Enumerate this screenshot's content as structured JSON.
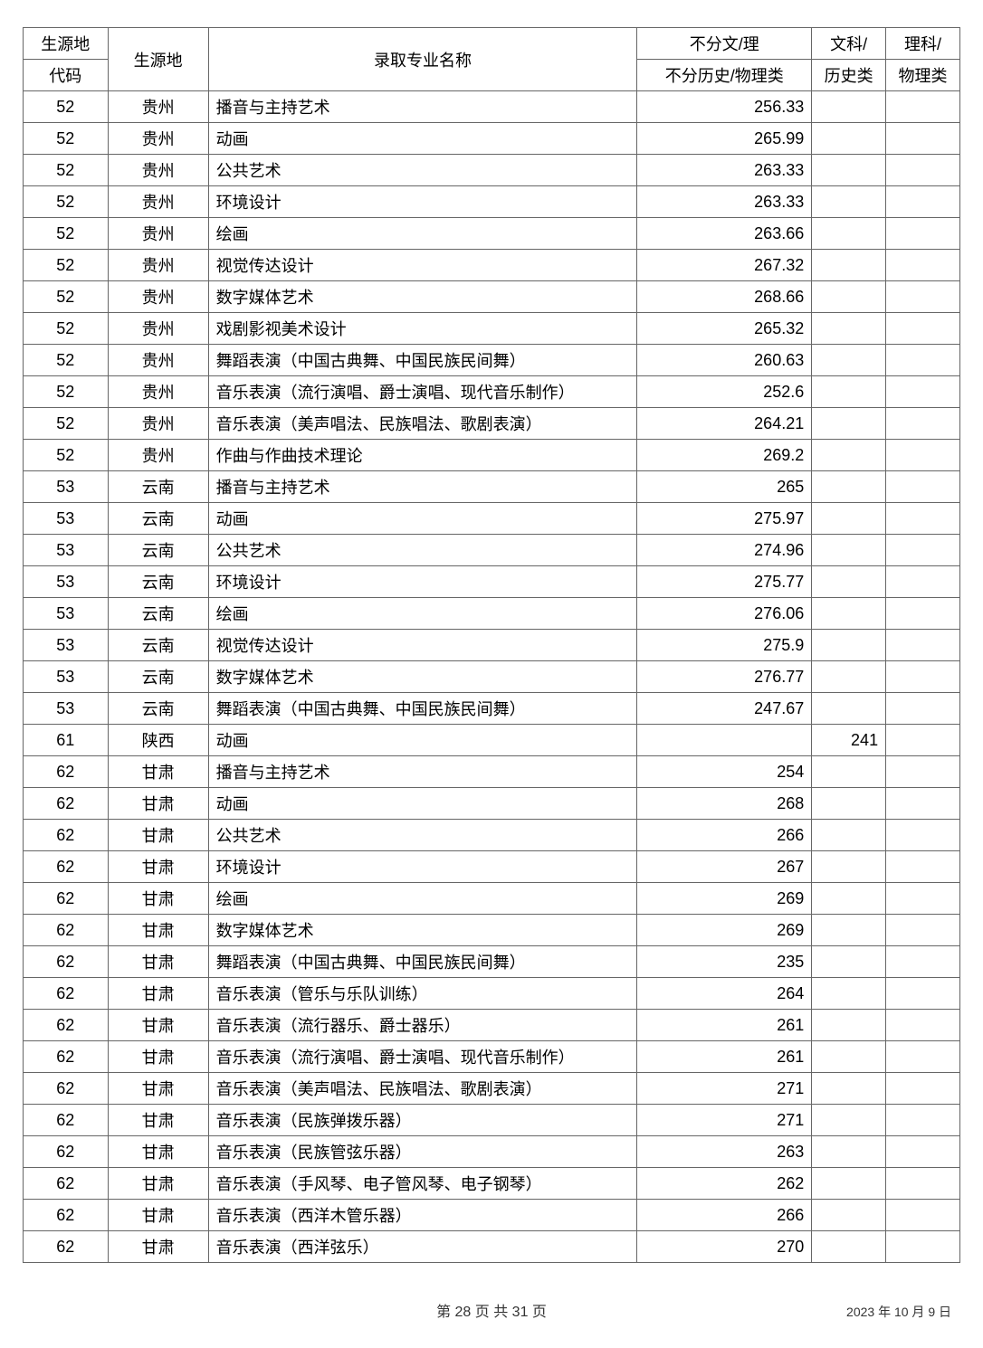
{
  "table": {
    "headers": {
      "col1_line1": "生源地",
      "col1_line2": "代码",
      "col2": "生源地",
      "col3": "录取专业名称",
      "col4_line1": "不分文/理",
      "col4_line2": "不分历史/物理类",
      "col5_line1": "文科/",
      "col5_line2": "历史类",
      "col6_line1": "理科/",
      "col6_line2": "物理类"
    },
    "rows": [
      {
        "code": "52",
        "region": "贵州",
        "major": "播音与主持艺术",
        "s1": "256.33",
        "s2": "",
        "s3": ""
      },
      {
        "code": "52",
        "region": "贵州",
        "major": "动画",
        "s1": "265.99",
        "s2": "",
        "s3": ""
      },
      {
        "code": "52",
        "region": "贵州",
        "major": "公共艺术",
        "s1": "263.33",
        "s2": "",
        "s3": ""
      },
      {
        "code": "52",
        "region": "贵州",
        "major": "环境设计",
        "s1": "263.33",
        "s2": "",
        "s3": ""
      },
      {
        "code": "52",
        "region": "贵州",
        "major": "绘画",
        "s1": "263.66",
        "s2": "",
        "s3": ""
      },
      {
        "code": "52",
        "region": "贵州",
        "major": "视觉传达设计",
        "s1": "267.32",
        "s2": "",
        "s3": ""
      },
      {
        "code": "52",
        "region": "贵州",
        "major": "数字媒体艺术",
        "s1": "268.66",
        "s2": "",
        "s3": ""
      },
      {
        "code": "52",
        "region": "贵州",
        "major": "戏剧影视美术设计",
        "s1": "265.32",
        "s2": "",
        "s3": ""
      },
      {
        "code": "52",
        "region": "贵州",
        "major": "舞蹈表演（中国古典舞、中国民族民间舞）",
        "s1": "260.63",
        "s2": "",
        "s3": ""
      },
      {
        "code": "52",
        "region": "贵州",
        "major": "音乐表演（流行演唱、爵士演唱、现代音乐制作）",
        "s1": "252.6",
        "s2": "",
        "s3": ""
      },
      {
        "code": "52",
        "region": "贵州",
        "major": "音乐表演（美声唱法、民族唱法、歌剧表演）",
        "s1": "264.21",
        "s2": "",
        "s3": ""
      },
      {
        "code": "52",
        "region": "贵州",
        "major": "作曲与作曲技术理论",
        "s1": "269.2",
        "s2": "",
        "s3": ""
      },
      {
        "code": "53",
        "region": "云南",
        "major": "播音与主持艺术",
        "s1": "265",
        "s2": "",
        "s3": ""
      },
      {
        "code": "53",
        "region": "云南",
        "major": "动画",
        "s1": "275.97",
        "s2": "",
        "s3": ""
      },
      {
        "code": "53",
        "region": "云南",
        "major": "公共艺术",
        "s1": "274.96",
        "s2": "",
        "s3": ""
      },
      {
        "code": "53",
        "region": "云南",
        "major": "环境设计",
        "s1": "275.77",
        "s2": "",
        "s3": ""
      },
      {
        "code": "53",
        "region": "云南",
        "major": "绘画",
        "s1": "276.06",
        "s2": "",
        "s3": ""
      },
      {
        "code": "53",
        "region": "云南",
        "major": "视觉传达设计",
        "s1": "275.9",
        "s2": "",
        "s3": ""
      },
      {
        "code": "53",
        "region": "云南",
        "major": "数字媒体艺术",
        "s1": "276.77",
        "s2": "",
        "s3": ""
      },
      {
        "code": "53",
        "region": "云南",
        "major": "舞蹈表演（中国古典舞、中国民族民间舞）",
        "s1": "247.67",
        "s2": "",
        "s3": ""
      },
      {
        "code": "61",
        "region": "陕西",
        "major": "动画",
        "s1": "",
        "s2": "241",
        "s3": ""
      },
      {
        "code": "62",
        "region": "甘肃",
        "major": "播音与主持艺术",
        "s1": "254",
        "s2": "",
        "s3": ""
      },
      {
        "code": "62",
        "region": "甘肃",
        "major": "动画",
        "s1": "268",
        "s2": "",
        "s3": ""
      },
      {
        "code": "62",
        "region": "甘肃",
        "major": "公共艺术",
        "s1": "266",
        "s2": "",
        "s3": ""
      },
      {
        "code": "62",
        "region": "甘肃",
        "major": "环境设计",
        "s1": "267",
        "s2": "",
        "s3": ""
      },
      {
        "code": "62",
        "region": "甘肃",
        "major": "绘画",
        "s1": "269",
        "s2": "",
        "s3": ""
      },
      {
        "code": "62",
        "region": "甘肃",
        "major": "数字媒体艺术",
        "s1": "269",
        "s2": "",
        "s3": ""
      },
      {
        "code": "62",
        "region": "甘肃",
        "major": "舞蹈表演（中国古典舞、中国民族民间舞）",
        "s1": "235",
        "s2": "",
        "s3": ""
      },
      {
        "code": "62",
        "region": "甘肃",
        "major": "音乐表演（管乐与乐队训练）",
        "s1": "264",
        "s2": "",
        "s3": ""
      },
      {
        "code": "62",
        "region": "甘肃",
        "major": "音乐表演（流行器乐、爵士器乐）",
        "s1": "261",
        "s2": "",
        "s3": ""
      },
      {
        "code": "62",
        "region": "甘肃",
        "major": "音乐表演（流行演唱、爵士演唱、现代音乐制作）",
        "s1": "261",
        "s2": "",
        "s3": ""
      },
      {
        "code": "62",
        "region": "甘肃",
        "major": "音乐表演（美声唱法、民族唱法、歌剧表演）",
        "s1": "271",
        "s2": "",
        "s3": ""
      },
      {
        "code": "62",
        "region": "甘肃",
        "major": "音乐表演（民族弹拨乐器）",
        "s1": "271",
        "s2": "",
        "s3": ""
      },
      {
        "code": "62",
        "region": "甘肃",
        "major": "音乐表演（民族管弦乐器）",
        "s1": "263",
        "s2": "",
        "s3": ""
      },
      {
        "code": "62",
        "region": "甘肃",
        "major": "音乐表演（手风琴、电子管风琴、电子钢琴）",
        "s1": "262",
        "s2": "",
        "s3": ""
      },
      {
        "code": "62",
        "region": "甘肃",
        "major": "音乐表演（西洋木管乐器）",
        "s1": "266",
        "s2": "",
        "s3": ""
      },
      {
        "code": "62",
        "region": "甘肃",
        "major": "音乐表演（西洋弦乐）",
        "s1": "270",
        "s2": "",
        "s3": ""
      }
    ]
  },
  "footer": {
    "page_prefix": "第 ",
    "page_current": "28",
    "page_mid": " 页 共 ",
    "page_total": "31",
    "page_suffix": " 页",
    "date": "2023 年 10 月 9 日"
  }
}
